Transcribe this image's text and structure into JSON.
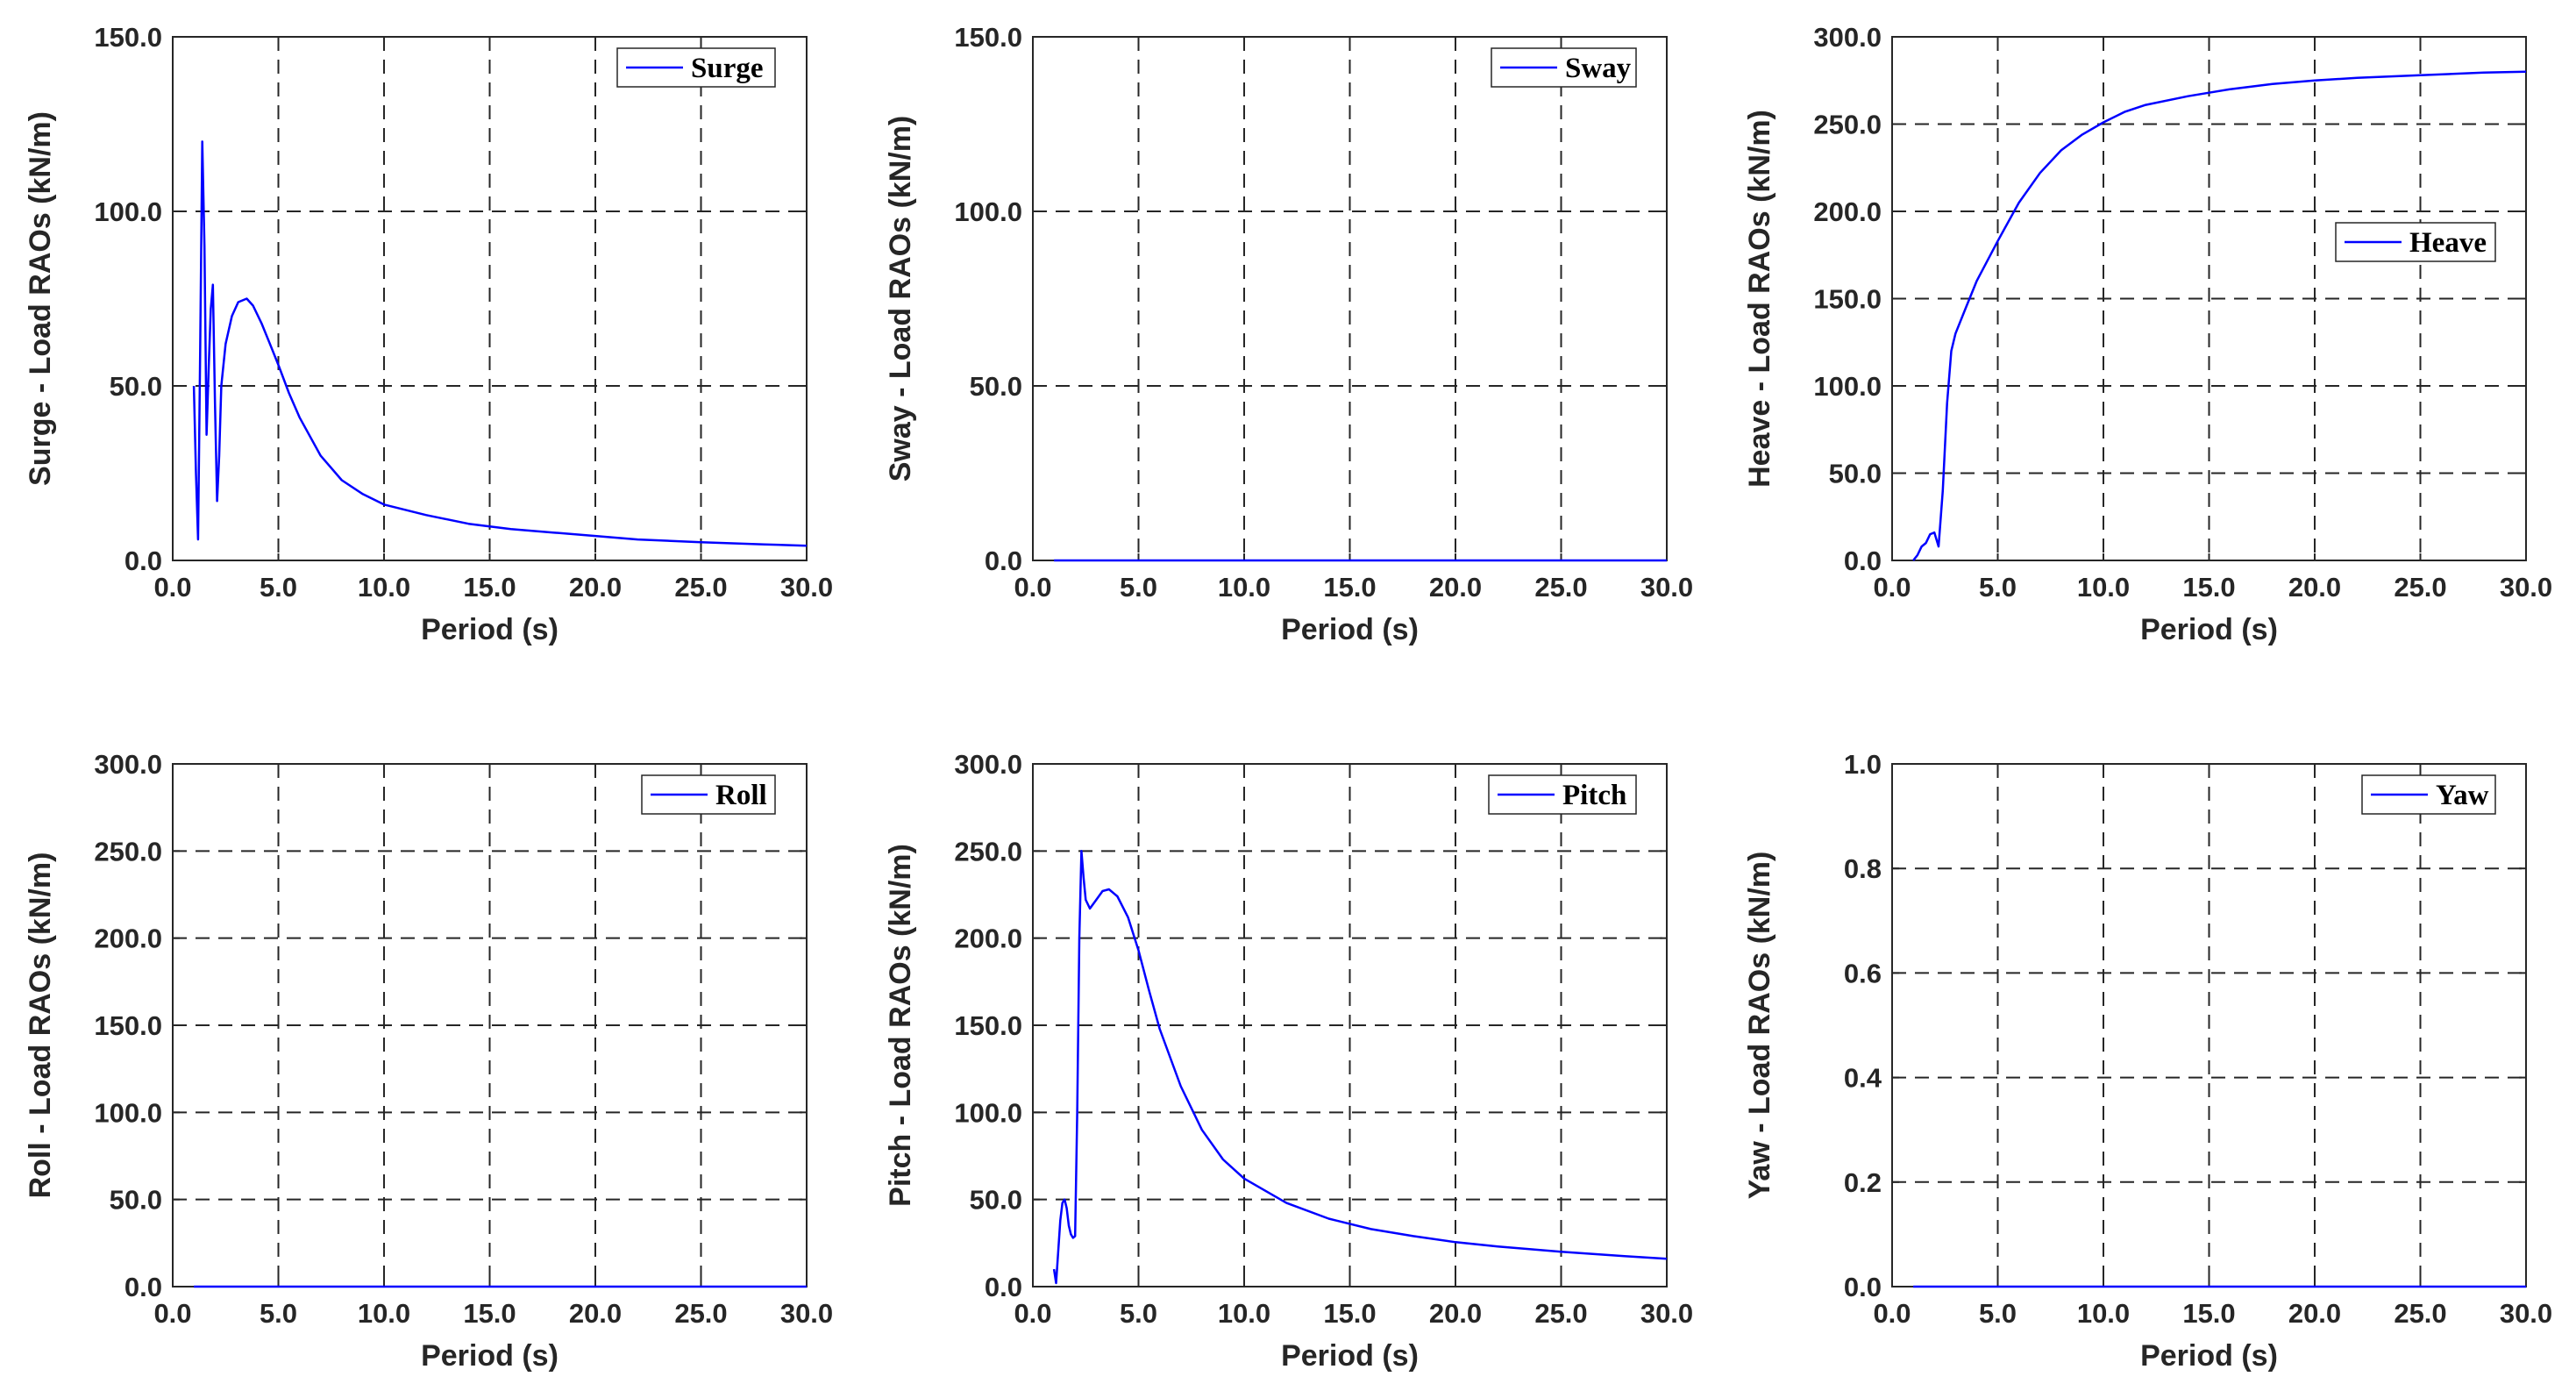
{
  "colors": {
    "series": "#0000ff",
    "axis": "#262626"
  },
  "chart_data": [
    {
      "type": "line",
      "name": "surge",
      "title": "",
      "xlabel": "Period (s)",
      "ylabel": "Surge - Load RAOs (kN/m)",
      "legend": "Surge",
      "legend_position": "top-right",
      "grid": true,
      "xlim": [
        0,
        30
      ],
      "ylim": [
        0,
        150
      ],
      "xticks": [
        0,
        5,
        10,
        15,
        20,
        25,
        30
      ],
      "xtick_labels": [
        "0.0",
        "5.0",
        "10.0",
        "15.0",
        "20.0",
        "25.0",
        "30.0"
      ],
      "yticks": [
        0,
        50,
        100,
        150
      ],
      "ytick_labels": [
        "0.0",
        "50.0",
        "100.0",
        "150.0"
      ],
      "series": [
        {
          "name": "Surge",
          "x": [
            1.0,
            1.1,
            1.2,
            1.3,
            1.4,
            1.5,
            1.6,
            1.7,
            1.8,
            1.9,
            2.0,
            2.1,
            2.2,
            2.3,
            2.5,
            2.8,
            3.1,
            3.5,
            3.8,
            4.2,
            4.6,
            5.0,
            5.5,
            6.0,
            7.0,
            8.0,
            9.0,
            10.0,
            12.0,
            14.0,
            16.0,
            18.0,
            20.0,
            22.0,
            25.0,
            28.0,
            30.0
          ],
          "y": [
            50,
            25,
            6,
            60,
            120,
            90,
            36,
            55,
            72,
            79,
            45,
            17,
            30,
            50,
            62,
            70,
            74,
            75,
            73,
            68,
            62,
            56,
            48,
            41,
            30,
            23,
            19,
            16,
            13,
            10.5,
            9,
            8,
            7,
            6,
            5.2,
            4.6,
            4.2
          ]
        }
      ]
    },
    {
      "type": "line",
      "name": "sway",
      "title": "",
      "xlabel": "Period (s)",
      "ylabel": "Sway - Load RAOs (kN/m)",
      "legend": "Sway",
      "legend_position": "top-right",
      "grid": true,
      "xlim": [
        0,
        30
      ],
      "ylim": [
        0,
        150
      ],
      "xticks": [
        0,
        5,
        10,
        15,
        20,
        25,
        30
      ],
      "xtick_labels": [
        "0.0",
        "5.0",
        "10.0",
        "15.0",
        "20.0",
        "25.0",
        "30.0"
      ],
      "yticks": [
        0,
        50,
        100,
        150
      ],
      "ytick_labels": [
        "0.0",
        "50.0",
        "100.0",
        "150.0"
      ],
      "series": [
        {
          "name": "Sway",
          "x": [
            1.0,
            30.0
          ],
          "y": [
            0,
            0
          ]
        }
      ]
    },
    {
      "type": "line",
      "name": "heave",
      "title": "",
      "xlabel": "Period (s)",
      "ylabel": "Heave - Load RAOs (kN/m)",
      "legend": "Heave",
      "legend_position": "upper-right",
      "grid": true,
      "xlim": [
        0,
        30
      ],
      "ylim": [
        0,
        300
      ],
      "xticks": [
        0,
        5,
        10,
        15,
        20,
        25,
        30
      ],
      "xtick_labels": [
        "0.0",
        "5.0",
        "10.0",
        "15.0",
        "20.0",
        "25.0",
        "30.0"
      ],
      "yticks": [
        0,
        50,
        100,
        150,
        200,
        250,
        300
      ],
      "ytick_labels": [
        "0.0",
        "50.0",
        "100.0",
        "150.0",
        "200.0",
        "250.0",
        "300.0"
      ],
      "series": [
        {
          "name": "Heave",
          "x": [
            1.0,
            1.2,
            1.4,
            1.6,
            1.8,
            2.0,
            2.2,
            2.4,
            2.6,
            2.8,
            3.0,
            3.5,
            4.0,
            5.0,
            6.0,
            7.0,
            8.0,
            9.0,
            10.0,
            11.0,
            12.0,
            14.0,
            16.0,
            18.0,
            20.0,
            22.0,
            25.0,
            28.0,
            30.0
          ],
          "y": [
            0,
            3,
            8,
            10,
            15,
            16,
            8,
            40,
            90,
            120,
            130,
            145,
            160,
            183,
            205,
            222,
            235,
            244,
            251,
            257,
            261,
            266,
            270,
            273,
            275,
            276.5,
            278,
            279.5,
            280
          ]
        }
      ]
    },
    {
      "type": "line",
      "name": "roll",
      "title": "",
      "xlabel": "Period (s)",
      "ylabel": "Roll - Load RAOs (kN/m)",
      "legend": "Roll",
      "legend_position": "top-right",
      "grid": true,
      "xlim": [
        0,
        30
      ],
      "ylim": [
        0,
        300
      ],
      "xticks": [
        0,
        5,
        10,
        15,
        20,
        25,
        30
      ],
      "xtick_labels": [
        "0.0",
        "5.0",
        "10.0",
        "15.0",
        "20.0",
        "25.0",
        "30.0"
      ],
      "yticks": [
        0,
        50,
        100,
        150,
        200,
        250,
        300
      ],
      "ytick_labels": [
        "0.0",
        "50.0",
        "100.0",
        "150.0",
        "200.0",
        "250.0",
        "300.0"
      ],
      "series": [
        {
          "name": "Roll",
          "x": [
            1.0,
            30.0
          ],
          "y": [
            0,
            0
          ]
        }
      ]
    },
    {
      "type": "line",
      "name": "pitch",
      "title": "",
      "xlabel": "Period (s)",
      "ylabel": "Pitch - Load RAOs (kN/m)",
      "legend": "Pitch",
      "legend_position": "top-right",
      "grid": true,
      "xlim": [
        0,
        30
      ],
      "ylim": [
        0,
        300
      ],
      "xticks": [
        0,
        5,
        10,
        15,
        20,
        25,
        30
      ],
      "xtick_labels": [
        "0.0",
        "5.0",
        "10.0",
        "15.0",
        "20.0",
        "25.0",
        "30.0"
      ],
      "yticks": [
        0,
        50,
        100,
        150,
        200,
        250,
        300
      ],
      "ytick_labels": [
        "0.0",
        "50.0",
        "100.0",
        "150.0",
        "200.0",
        "250.0",
        "300.0"
      ],
      "series": [
        {
          "name": "Pitch",
          "x": [
            1.0,
            1.1,
            1.2,
            1.3,
            1.4,
            1.5,
            1.6,
            1.7,
            1.8,
            1.9,
            2.0,
            2.1,
            2.2,
            2.3,
            2.4,
            2.5,
            2.7,
            3.0,
            3.3,
            3.6,
            4.0,
            4.5,
            5.0,
            5.5,
            6.0,
            7.0,
            8.0,
            9.0,
            10.0,
            12.0,
            14.0,
            16.0,
            18.0,
            20.0,
            22.0,
            25.0,
            28.0,
            30.0
          ],
          "y": [
            10,
            2,
            20,
            38,
            48,
            50,
            45,
            35,
            30,
            28,
            29,
            100,
            200,
            250,
            235,
            222,
            217,
            222,
            227,
            228,
            224,
            212,
            193,
            170,
            148,
            115,
            90,
            73,
            62,
            48,
            39,
            33,
            29,
            25.5,
            23,
            20,
            17.5,
            16
          ]
        }
      ]
    },
    {
      "type": "line",
      "name": "yaw",
      "title": "",
      "xlabel": "Period (s)",
      "ylabel": "Yaw - Load RAOs (kN/m)",
      "legend": "Yaw",
      "legend_position": "top-right",
      "grid": true,
      "xlim": [
        0,
        30
      ],
      "ylim": [
        0,
        1
      ],
      "xticks": [
        0,
        5,
        10,
        15,
        20,
        25,
        30
      ],
      "xtick_labels": [
        "0.0",
        "5.0",
        "10.0",
        "15.0",
        "20.0",
        "25.0",
        "30.0"
      ],
      "yticks": [
        0,
        0.2,
        0.4,
        0.6,
        0.8,
        1.0
      ],
      "ytick_labels": [
        "0.0",
        "0.2",
        "0.4",
        "0.6",
        "0.8",
        "1.0"
      ],
      "series": [
        {
          "name": "Yaw",
          "x": [
            1.0,
            30.0
          ],
          "y": [
            0,
            0
          ]
        }
      ]
    }
  ]
}
